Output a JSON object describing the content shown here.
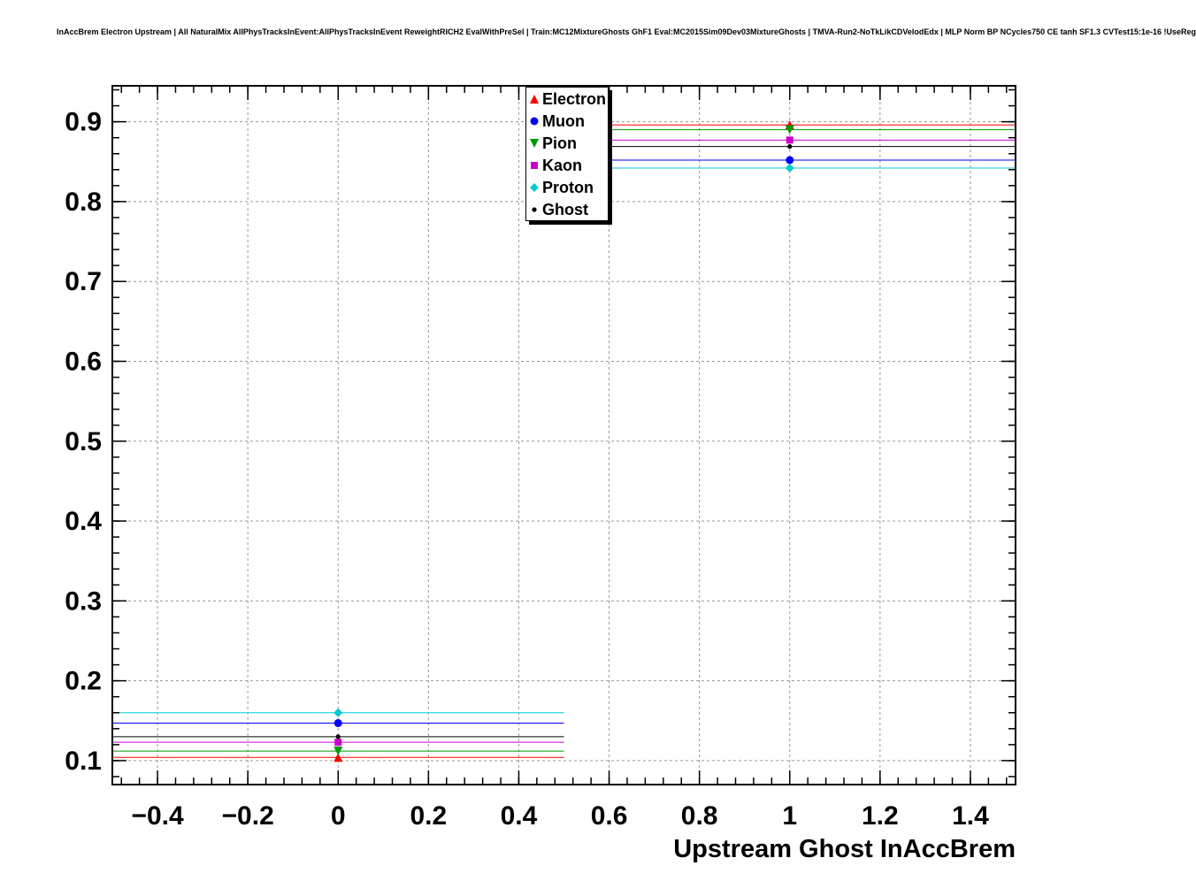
{
  "header": {
    "title": "InAccBrem Electron Upstream | All NaturalMix AllPhysTracksInEvent:AllPhysTracksInEvent ReweightRICH2 EvalWithPreSel | Train:MC12MixtureGhosts GhF1 Eval:MC2015Sim09Dev03MixtureGhosts | TMVA-Run2-NoTkLikCDVelodEdx | MLP Norm BP NCycles750 CE tanh SF1.3 CVTest15:1e-16 !UseReg"
  },
  "chart_data": {
    "type": "scatter",
    "title": "InAccBrem Electron Upstream | All NaturalMix AllPhysTracksInEvent:AllPhysTracksInEvent ReweightRICH2 EvalWithPreSel | Train:MC12MixtureGhosts GhF1 Eval:MC2015Sim09Dev03MixtureGhosts | TMVA-Run2-NoTkLikCDVelodEdx | MLP Norm BP NCycles750 CE tanh SF1.3 CVTest15:1e-16 !UseReg",
    "xlabel": "Upstream Ghost InAccBrem",
    "ylabel": "",
    "xlim": [
      -0.5,
      1.5
    ],
    "ylim": [
      0.07,
      0.945
    ],
    "grid": true,
    "legend_position": "top-center",
    "x": [
      0,
      1
    ],
    "bin_halfwidth": 0.5,
    "x_major_ticks": [
      -0.4,
      -0.2,
      0,
      0.2,
      0.4,
      0.6,
      0.8,
      1,
      1.2,
      1.4
    ],
    "x_tick_labels": [
      "−0.4",
      "−0.2",
      "0",
      "0.2",
      "0.4",
      "0.6",
      "0.8",
      "1",
      "1.2",
      "1.4"
    ],
    "y_major_ticks": [
      0.1,
      0.2,
      0.3,
      0.4,
      0.5,
      0.6,
      0.7,
      0.8,
      0.9
    ],
    "y_tick_labels": [
      "0.1",
      "0.2",
      "0.3",
      "0.4",
      "0.5",
      "0.6",
      "0.7",
      "0.8",
      "0.9"
    ],
    "x_minor_step": 0.04,
    "y_minor_step": 0.02,
    "series": [
      {
        "name": "Electron",
        "color": "#ff0000",
        "marker": "triangle-up",
        "values": [
          0.104,
          0.896
        ],
        "yerr": 0.003
      },
      {
        "name": "Muon",
        "color": "#0000ff",
        "marker": "circle",
        "values": [
          0.147,
          0.852
        ],
        "yerr": 0.003
      },
      {
        "name": "Pion",
        "color": "#009900",
        "marker": "triangle-down",
        "values": [
          0.112,
          0.89
        ],
        "yerr": 0.003
      },
      {
        "name": "Kaon",
        "color": "#cc00cc",
        "marker": "square",
        "values": [
          0.123,
          0.877
        ],
        "yerr": 0.003
      },
      {
        "name": "Proton",
        "color": "#00cccc",
        "marker": "diamond",
        "values": [
          0.16,
          0.842
        ],
        "yerr": 0.003
      },
      {
        "name": "Ghost",
        "color": "#000000",
        "marker": "dot",
        "values": [
          0.13,
          0.869
        ],
        "yerr": 0.003
      }
    ]
  }
}
